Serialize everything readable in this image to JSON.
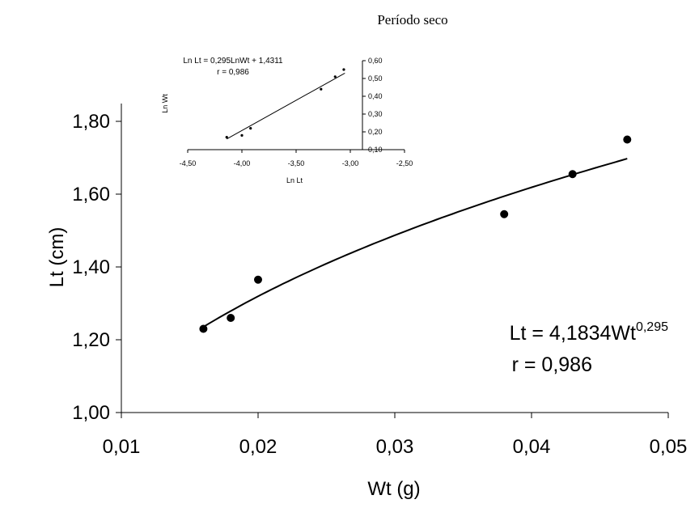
{
  "chart_data": [
    {
      "type": "scatter",
      "title": "Período seco",
      "xlabel": "Wt (g)",
      "ylabel": "Lt (cm)",
      "xlim": [
        0.01,
        0.05
      ],
      "ylim": [
        1.0,
        1.9
      ],
      "xticks": [
        "0,01",
        "0,02",
        "0,03",
        "0,04",
        "0,05"
      ],
      "yticks": [
        "1,00",
        "1,20",
        "1,40",
        "1,60",
        "1,80"
      ],
      "grid": false,
      "points": [
        {
          "x": 0.016,
          "y": 1.23
        },
        {
          "x": 0.018,
          "y": 1.26
        },
        {
          "x": 0.02,
          "y": 1.365
        },
        {
          "x": 0.038,
          "y": 1.545
        },
        {
          "x": 0.043,
          "y": 1.655
        },
        {
          "x": 0.047,
          "y": 1.75
        }
      ],
      "trendline": {
        "type": "power",
        "a": 4.1834,
        "b": 0.295,
        "x_from": 0.016,
        "x_to": 0.047
      },
      "annotations": {
        "equation_base": "Lt = 4,1834Wt",
        "equation_exp": "0,295",
        "r": "r = 0,986"
      }
    },
    {
      "type": "scatter",
      "xlabel": "Ln Lt",
      "ylabel": "Ln Wt",
      "xlim": [
        -4.5,
        -2.5
      ],
      "ylim": [
        0.1,
        0.6
      ],
      "xticks": [
        "-4,50",
        "-4,00",
        "-3,50",
        "-3,00",
        "-2,50"
      ],
      "yticks": [
        "0,10",
        "0,20",
        "0,30",
        "0,40",
        "0,50",
        "0,60"
      ],
      "grid": false,
      "points": [
        {
          "x": -4.14,
          "y": 0.17
        },
        {
          "x": -4.0,
          "y": 0.18
        },
        {
          "x": -3.92,
          "y": 0.22
        },
        {
          "x": -3.27,
          "y": 0.44
        },
        {
          "x": -3.14,
          "y": 0.51
        },
        {
          "x": -3.06,
          "y": 0.55
        }
      ],
      "trendline": {
        "type": "linear",
        "x_from": -4.14,
        "x_to": -3.05,
        "y_from": 0.16,
        "y_to": 0.53
      },
      "annotations": {
        "equation": "Ln Lt = 0,295LnWt + 1,4311",
        "r": "r = 0,986"
      }
    }
  ]
}
